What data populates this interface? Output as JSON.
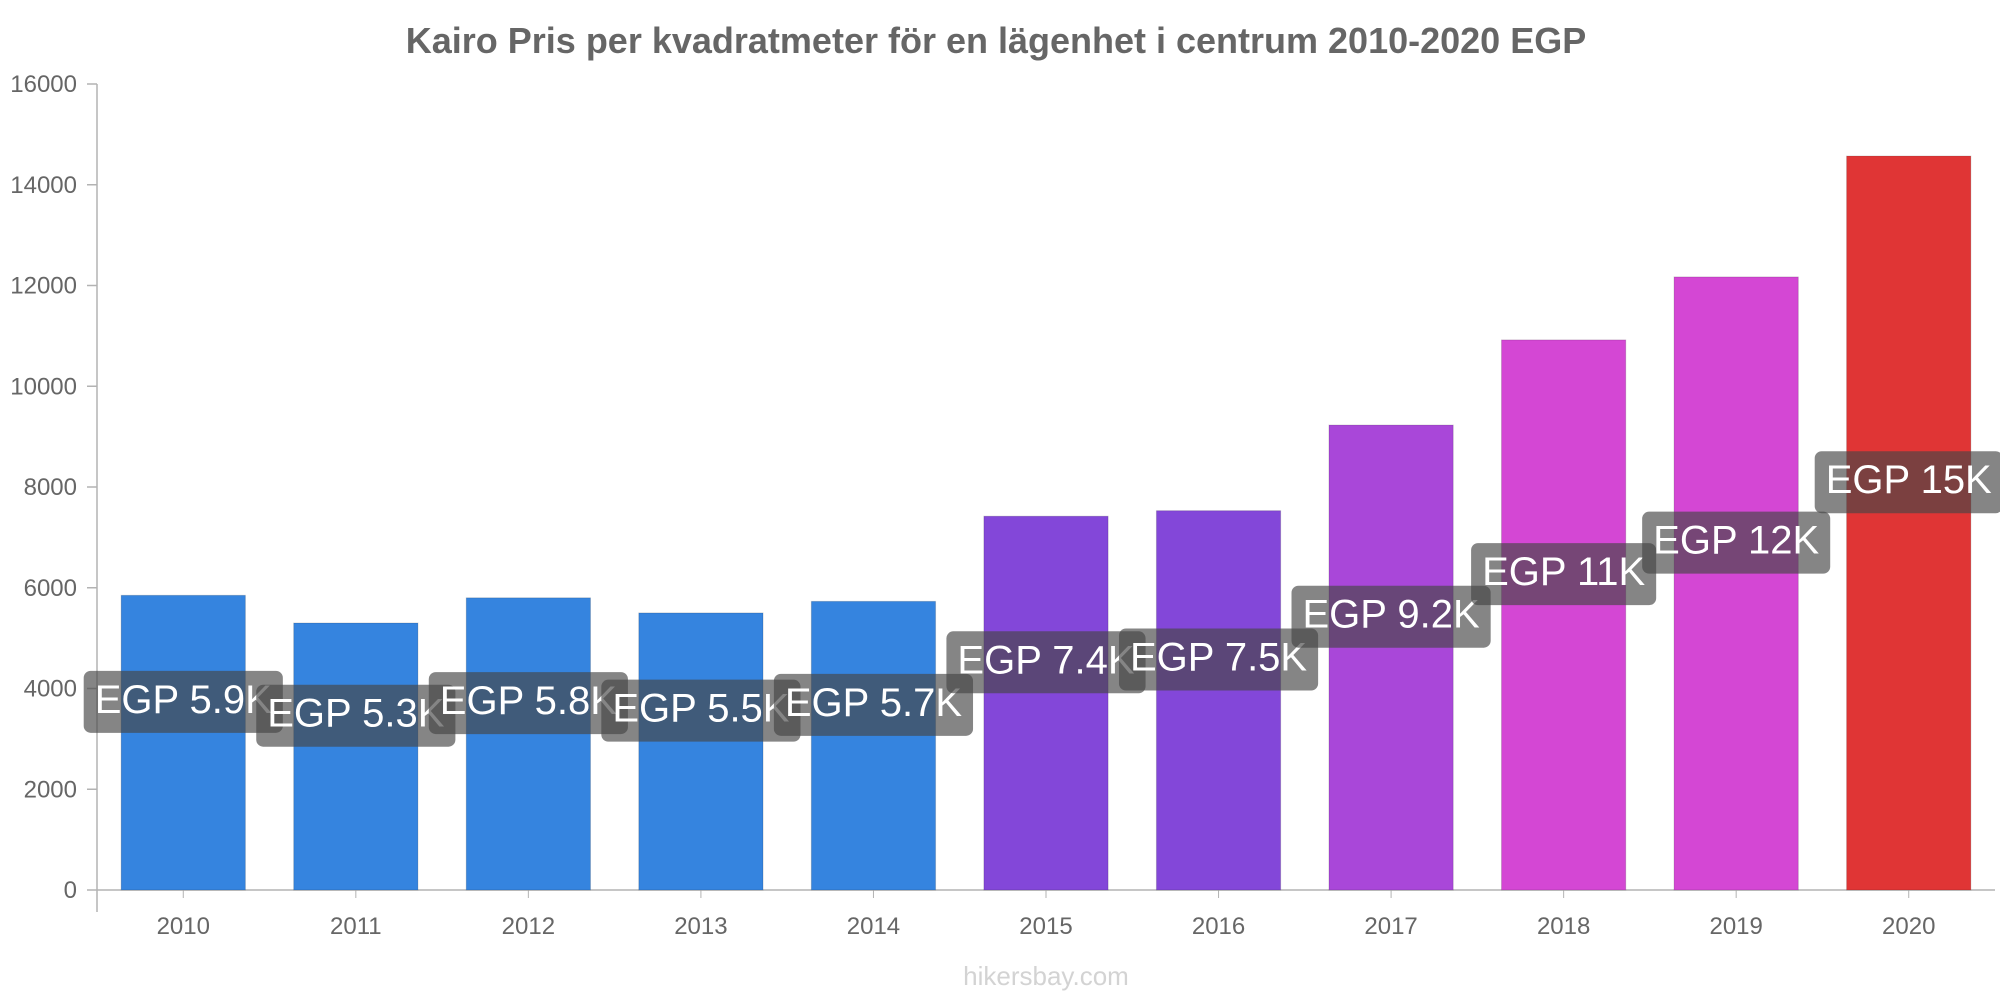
{
  "chart_data": {
    "type": "bar",
    "title": "Kairo Pris per kvadratmeter för en lägenhet i centrum 2010-2020 EGP",
    "xlabel": "",
    "ylabel": "",
    "ylim": [
      0,
      16000
    ],
    "yticks": [
      "0",
      "2000",
      "4000",
      "6000",
      "8000",
      "10000",
      "12000",
      "14000",
      "16000"
    ],
    "categories": [
      "2010",
      "2011",
      "2012",
      "2013",
      "2014",
      "2015",
      "2016",
      "2017",
      "2018",
      "2019",
      "2020"
    ],
    "values": [
      5850,
      5300,
      5800,
      5500,
      5730,
      7420,
      7530,
      9230,
      10920,
      12170,
      14570
    ],
    "data_labels": [
      "EGP 5.9K",
      "EGP 5.3K",
      "EGP 5.8K",
      "EGP 5.5K",
      "EGP 5.7K",
      "EGP 7.4K",
      "EGP 7.5K",
      "EGP 9.2K",
      "EGP 11K",
      "EGP 12K",
      "EGP 15K"
    ],
    "colors": [
      "#3584df",
      "#3584df",
      "#3584df",
      "#3584df",
      "#3584df",
      "#8347d9",
      "#8347d9",
      "#a947d9",
      "#d447d4",
      "#d447d4",
      "#e03535"
    ],
    "grid": false,
    "legend": "none"
  },
  "footer": {
    "watermark": "hikersbay.com"
  }
}
